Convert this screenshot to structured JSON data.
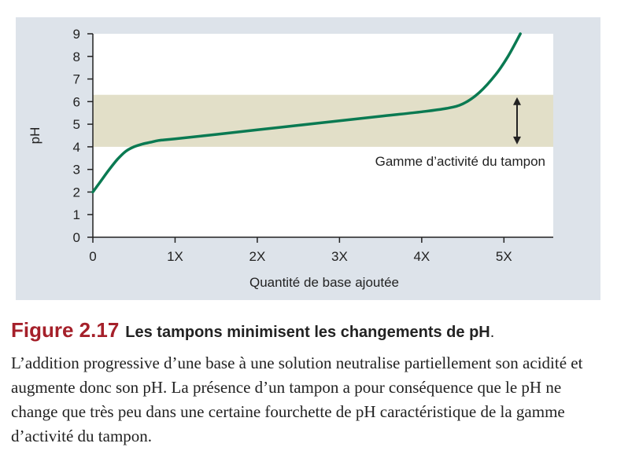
{
  "chart_data": {
    "type": "line",
    "ylabel": "pH",
    "xlabel": "Quantité de base ajoutée",
    "x_ticks": [
      "0",
      "1X",
      "2X",
      "3X",
      "4X",
      "5X"
    ],
    "y_ticks": [
      "0",
      "1",
      "2",
      "3",
      "4",
      "5",
      "6",
      "7",
      "8",
      "9"
    ],
    "xlim": [
      0,
      5.6
    ],
    "ylim": [
      0,
      9
    ],
    "grid": false,
    "series": [
      {
        "x": [
          0,
          0.1,
          0.2,
          0.3,
          0.4,
          0.5,
          0.6,
          0.7,
          0.8,
          1.0,
          1.5,
          2.0,
          2.5,
          3.0,
          3.5,
          4.0,
          4.3,
          4.5,
          4.7,
          4.9,
          5.05,
          5.2
        ],
        "y": [
          2.0,
          2.5,
          3.0,
          3.45,
          3.8,
          4.0,
          4.12,
          4.2,
          4.28,
          4.35,
          4.55,
          4.75,
          4.95,
          5.15,
          5.35,
          5.55,
          5.7,
          5.9,
          6.4,
          7.2,
          8.0,
          9.0
        ]
      }
    ],
    "band": {
      "y_min": 4.0,
      "y_max": 6.3,
      "label": "Gamme d’activité du tampon"
    },
    "colors": {
      "line": "#0a7a52",
      "band": "#e2dfc8",
      "plot_bg": "#ffffff",
      "panel_bg": "#dde3ea"
    }
  },
  "caption": {
    "figure_number": "Figure 2.17",
    "heading": "Les tampons minimisent les changements de pH",
    "heading_end": ".",
    "body": "L’addition progressive d’une base à une solution neutralise partiellement son acidité et augmente donc son pH. La présence d’un tampon a pour conséquence que le pH ne change que très peu dans une certaine fourchette de pH caractéristique de la gamme d’activité du tampon."
  }
}
